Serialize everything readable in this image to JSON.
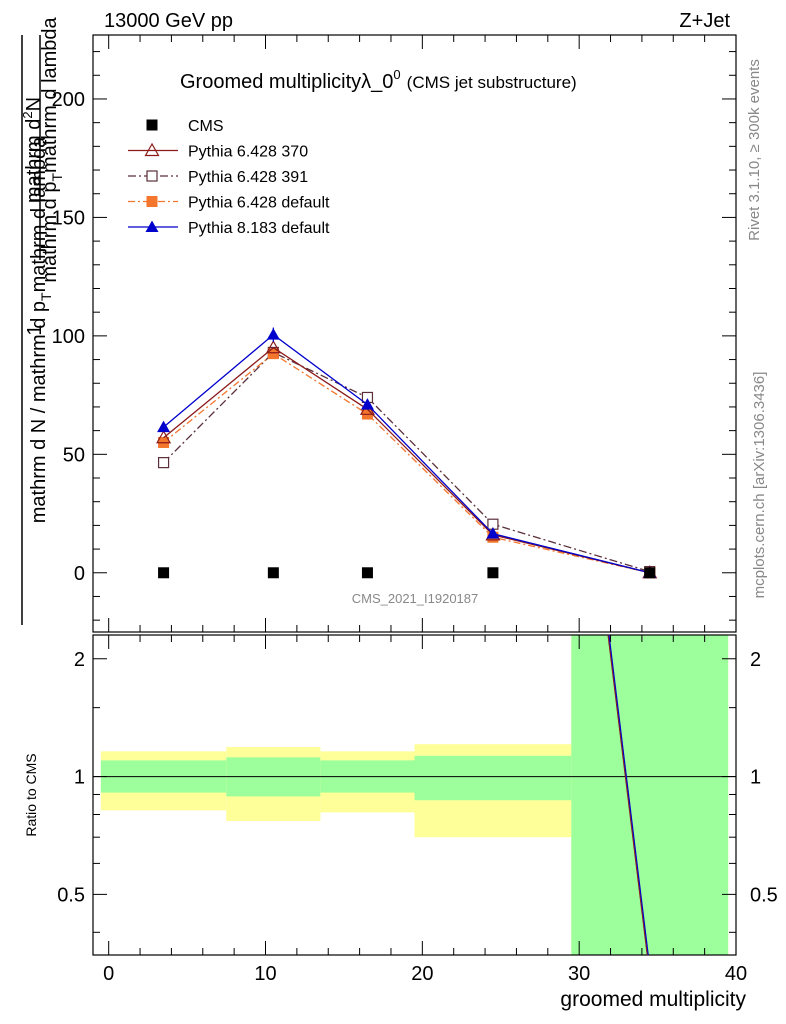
{
  "header": {
    "left": "13000 GeV pp",
    "right": "Z+Jet"
  },
  "main_title": {
    "text": "Groomed multiplicityλ_0",
    "superscript": "0",
    "suffix": "(CMS jet substructure)"
  },
  "analysis_id": "CMS_2021_I1920187",
  "side_labels": {
    "rivet": "Rivet 3.1.10, ≥ 300k events",
    "source": "mcplots.cern.ch [arXiv:1306.3436]"
  },
  "y_axis_label": {
    "one": "1",
    "numerator": "mathrm d N / mathrm d p_T mathrm d lambda",
    "numerator_sub_dN": "mathrm d",
    "denominator": "mathrm d N / mathrm d p_T mathrm d p_T mathrm d lambda"
  },
  "ratio_axis_label": "Ratio to CMS",
  "colors": {
    "cms": "#000000",
    "p6_370": "#8b1a1a",
    "p6_391": "#5a2f3a",
    "p6_default": "#f4762c",
    "p8_default": "#0000cc",
    "band_inner": "#9cff9c",
    "band_outer": "#ffff99"
  },
  "chart_data": [
    {
      "type": "line",
      "panel": "main",
      "title": "Groomed multiplicityλ_0^0 (CMS jet substructure)",
      "xlabel": "groomed multiplicity",
      "ylabel": "1/(mathrm d N / mathrm d p_T mathrm d lambda) mathrm d^2N / mathrm d p_T mathrm d lambda",
      "xlim": [
        -1,
        40
      ],
      "ylim": [
        -25,
        227
      ],
      "yticks": [
        0,
        50,
        100,
        150,
        200
      ],
      "xticks": [
        0,
        10,
        20,
        30,
        40
      ],
      "x": [
        3.5,
        10.5,
        16.5,
        24.5,
        34.5
      ],
      "series": [
        {
          "name": "CMS",
          "key": "cms",
          "marker": "square",
          "values": [
            0,
            0,
            0,
            0,
            0
          ]
        },
        {
          "name": "Pythia 6.428 370",
          "key": "p6_370",
          "marker": "triangle-open",
          "dash": "",
          "values": [
            57,
            95,
            69,
            16,
            0
          ]
        },
        {
          "name": "Pythia 6.428 391",
          "key": "p6_391",
          "marker": "square-open",
          "dash": "8 3 2 3",
          "values": [
            46.5,
            93,
            74,
            20.5,
            0.5
          ]
        },
        {
          "name": "Pythia 6.428 default",
          "key": "p6_default",
          "marker": "square",
          "dash": "7 3 2 3",
          "values": [
            55,
            92.5,
            67,
            15,
            0
          ]
        },
        {
          "name": "Pythia 8.183 default",
          "key": "p8_default",
          "marker": "triangle",
          "dash": "",
          "values": [
            61.5,
            100.5,
            71,
            16.5,
            0
          ]
        }
      ]
    },
    {
      "type": "area",
      "panel": "ratio",
      "xlabel": "groomed multiplicity",
      "ylabel": "Ratio to CMS",
      "xlim": [
        -1,
        40
      ],
      "ylim": [
        0.35,
        2.3
      ],
      "yticks": [
        0.5,
        1,
        2
      ],
      "xticks": [
        0,
        10,
        20,
        30,
        40
      ],
      "bins": [
        {
          "x0": -0.5,
          "x1": 7.5,
          "inner": [
            0.91,
            1.1
          ],
          "outer": [
            0.82,
            1.16
          ]
        },
        {
          "x0": 7.5,
          "x1": 13.5,
          "inner": [
            0.89,
            1.12
          ],
          "outer": [
            0.77,
            1.19
          ]
        },
        {
          "x0": 13.5,
          "x1": 19.5,
          "inner": [
            0.91,
            1.1
          ],
          "outer": [
            0.81,
            1.16
          ]
        },
        {
          "x0": 19.5,
          "x1": 29.5,
          "inner": [
            0.87,
            1.13
          ],
          "outer": [
            0.7,
            1.21
          ]
        },
        {
          "x0": 29.5,
          "x1": 39.5,
          "inner": [
            0.35,
            2.3
          ],
          "outer": [
            0.35,
            2.3
          ]
        }
      ],
      "reference_line": 1,
      "mc_line": {
        "x": [
          31.9,
          34.4
        ],
        "y": [
          2.3,
          0.35
        ]
      }
    }
  ]
}
